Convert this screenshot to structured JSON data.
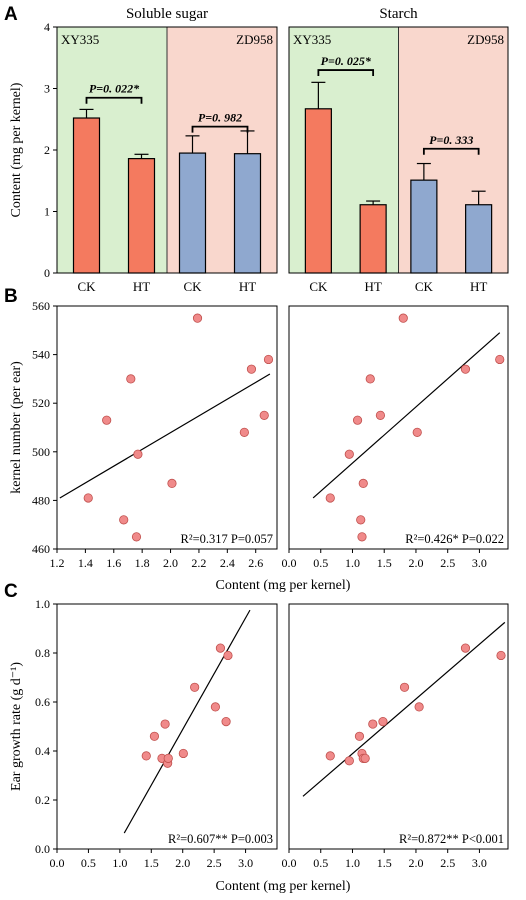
{
  "panel_labels": [
    "A",
    "B",
    "C"
  ],
  "colors": {
    "xy335_bg": "#d9efcf",
    "zd958_bg": "#f9d7cd",
    "ck_bar": "#f47a5f",
    "ht_bar": "#8fa8cf",
    "point": "#f08a8a",
    "point_edge": "#c0504d"
  },
  "chart_data": [
    {
      "type": "bar",
      "title": "Soluble sugar",
      "ylabel": "Content (mg per kernel)",
      "ylim": [
        0,
        4
      ],
      "yticks": [
        "0",
        "1",
        "2",
        "3",
        "4"
      ],
      "categories": [
        "CK",
        "HT",
        "CK",
        "HT"
      ],
      "groups": [
        "XY335",
        "XY335",
        "ZD958",
        "ZD958"
      ],
      "values": [
        2.52,
        1.86,
        1.95,
        1.94
      ],
      "errors": [
        0.14,
        0.07,
        0.28,
        0.37
      ],
      "group_labels": [
        "XY335",
        "ZD958"
      ],
      "annotations": [
        {
          "text": "P=0. 022*",
          "bars": [
            0,
            1
          ],
          "y": 2.85
        },
        {
          "text": "P=0. 982",
          "bars": [
            2,
            3
          ],
          "y": 2.38
        }
      ]
    },
    {
      "type": "bar",
      "title": "Starch",
      "ylim": [
        0,
        4
      ],
      "categories": [
        "CK",
        "HT",
        "CK",
        "HT"
      ],
      "groups": [
        "XY335",
        "XY335",
        "ZD958",
        "ZD958"
      ],
      "values": [
        2.67,
        1.11,
        1.51,
        1.11
      ],
      "errors": [
        0.43,
        0.06,
        0.27,
        0.22
      ],
      "group_labels": [
        "XY335",
        "ZD958"
      ],
      "annotations": [
        {
          "text": "P=0. 025*",
          "bars": [
            0,
            1
          ],
          "y": 3.3
        },
        {
          "text": "P=0. 333",
          "bars": [
            2,
            3
          ],
          "y": 2.02
        }
      ]
    },
    {
      "type": "scatter",
      "ylabel": "kernel number (per ear)",
      "xlim": [
        1.2,
        2.75
      ],
      "ylim": [
        460,
        560
      ],
      "xticks": [
        "1.2",
        "1.4",
        "1.6",
        "1.8",
        "2.0",
        "2.2",
        "2.4",
        "2.6"
      ],
      "yticks": [
        "460",
        "480",
        "500",
        "520",
        "540",
        "560"
      ],
      "x": [
        1.42,
        1.55,
        1.67,
        1.72,
        1.76,
        1.77,
        2.01,
        2.19,
        2.52,
        2.57,
        2.66,
        2.69
      ],
      "y": [
        481,
        513,
        472,
        530,
        465,
        499,
        487,
        555,
        508,
        534,
        515,
        538
      ],
      "fit": {
        "x": [
          1.22,
          2.7
        ],
        "y": [
          481,
          532
        ]
      },
      "stats": "R²=0.317 P=0.057"
    },
    {
      "type": "scatter",
      "xlim": [
        0,
        3.45
      ],
      "ylim": [
        460,
        560
      ],
      "xticks": [
        "0.0",
        "0.5",
        "1.0",
        "1.5",
        "2.0",
        "2.5",
        "3.0"
      ],
      "x": [
        0.65,
        0.95,
        1.08,
        1.13,
        1.15,
        1.17,
        1.28,
        1.44,
        1.8,
        2.02,
        2.78,
        3.32
      ],
      "y": [
        481,
        499,
        513,
        472,
        465,
        487,
        530,
        515,
        555,
        508,
        534,
        538
      ],
      "fit": {
        "x": [
          0.38,
          3.32
        ],
        "y": [
          481,
          549
        ]
      },
      "stats": "R²=0.426* P=0.022"
    },
    {
      "type": "scatter",
      "ylabel": "Ear growth rate (g d⁻¹)",
      "xlim": [
        0,
        3.5
      ],
      "ylim": [
        0,
        1.0
      ],
      "xticks": [
        "0.0",
        "0.5",
        "1.0",
        "1.5",
        "2.0",
        "2.5",
        "3.0"
      ],
      "yticks": [
        "0.0",
        "0.2",
        "0.4",
        "0.6",
        "0.8",
        "1.0"
      ],
      "x": [
        1.42,
        1.55,
        1.67,
        1.72,
        1.76,
        1.77,
        2.01,
        2.19,
        2.52,
        2.6,
        2.69,
        2.72
      ],
      "y": [
        0.38,
        0.46,
        0.37,
        0.51,
        0.35,
        0.37,
        0.39,
        0.66,
        0.58,
        0.82,
        0.52,
        0.79
      ],
      "fit": {
        "x": [
          1.07,
          3.07
        ],
        "y": [
          0.065,
          0.975
        ]
      },
      "stats": "R²=0.607** P=0.003"
    },
    {
      "type": "scatter",
      "xlim": [
        0,
        3.45
      ],
      "ylim": [
        0,
        1.0
      ],
      "xticks": [
        "0.0",
        "0.5",
        "1.0",
        "1.5",
        "2.0",
        "2.5",
        "3.0"
      ],
      "x": [
        0.65,
        0.95,
        1.11,
        1.15,
        1.17,
        1.2,
        1.32,
        1.48,
        1.82,
        2.05,
        2.78,
        3.34
      ],
      "y": [
        0.38,
        0.36,
        0.46,
        0.39,
        0.37,
        0.37,
        0.51,
        0.52,
        0.66,
        0.58,
        0.82,
        0.79
      ],
      "fit": {
        "x": [
          0.22,
          3.4
        ],
        "y": [
          0.215,
          0.925
        ]
      },
      "stats": "R²=0.872** P<0.001"
    }
  ],
  "xlabel_shared": "Content (mg per kernel)"
}
